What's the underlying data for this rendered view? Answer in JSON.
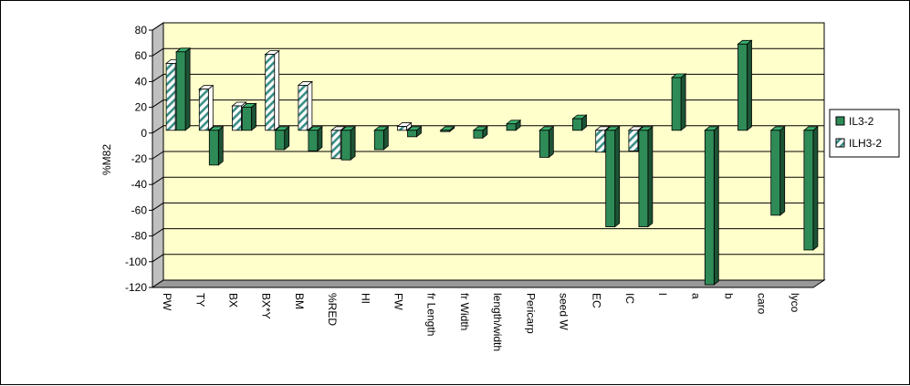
{
  "chart_data": {
    "type": "bar",
    "xlabel": "",
    "ylabel": "%M82",
    "ylim": [
      -120,
      80
    ],
    "ytick_step": 20,
    "grid": true,
    "legend_position": "right",
    "categories": [
      "PW",
      "TY",
      "BX",
      "BX*Y",
      "BM",
      "%RED",
      "HI",
      "FW",
      "fr Length",
      "fr Width",
      "length/width",
      "Pericarp",
      "seed W",
      "EC",
      "IC",
      "l",
      "a",
      "b",
      "caro",
      "lyco"
    ],
    "series": [
      {
        "name": "ILH3-2",
        "pattern": "hatched",
        "color": "#3a8f86",
        "values": [
          52,
          32,
          19,
          59,
          35,
          -22,
          null,
          3,
          null,
          null,
          null,
          null,
          null,
          -17,
          -16,
          null,
          null,
          null,
          null,
          null
        ]
      },
      {
        "name": "IL3-2",
        "pattern": "solid",
        "color": "#2e8b57",
        "values": [
          61,
          -27,
          18,
          -15,
          -16,
          -23,
          -15,
          -5,
          -1,
          -6,
          5,
          -21,
          9,
          -75,
          -75,
          41,
          -120,
          67,
          -66,
          -93
        ]
      }
    ],
    "colors": {
      "plot_background": "#ffffcc",
      "floor": "#999999",
      "wall_side": "#c0c0c0",
      "gridline": "#000000"
    }
  }
}
